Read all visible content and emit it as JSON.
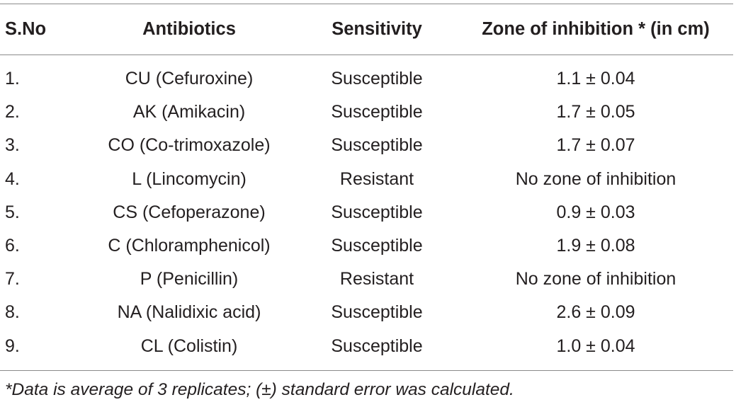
{
  "table": {
    "headers": {
      "sno": "S.No",
      "antibiotics": "Antibiotics",
      "sensitivity": "Sensitivity",
      "zone": "Zone of inhibition * (in cm)"
    },
    "rows": [
      {
        "sno": "1.",
        "antibiotic": "CU (Cefuroxine)",
        "sensitivity": "Susceptible",
        "zone": "1.1 ± 0.04"
      },
      {
        "sno": "2.",
        "antibiotic": "AK (Amikacin)",
        "sensitivity": "Susceptible",
        "zone": "1.7 ± 0.05"
      },
      {
        "sno": "3.",
        "antibiotic": "CO (Co-trimoxazole)",
        "sensitivity": "Susceptible",
        "zone": "1.7 ± 0.07"
      },
      {
        "sno": "4.",
        "antibiotic": "L (Lincomycin)",
        "sensitivity": "Resistant",
        "zone": "No zone of inhibition"
      },
      {
        "sno": "5.",
        "antibiotic": "CS (Cefoperazone)",
        "sensitivity": "Susceptible",
        "zone": "0.9 ± 0.03"
      },
      {
        "sno": "6.",
        "antibiotic": "C (Chloramphenicol)",
        "sensitivity": "Susceptible",
        "zone": "1.9 ± 0.08"
      },
      {
        "sno": "7.",
        "antibiotic": "P (Penicillin)",
        "sensitivity": "Resistant",
        "zone": "No zone of inhibition"
      },
      {
        "sno": "8.",
        "antibiotic": "NA (Nalidixic acid)",
        "sensitivity": "Susceptible",
        "zone": "2.6 ± 0.09"
      },
      {
        "sno": "9.",
        "antibiotic": "CL (Colistin)",
        "sensitivity": "Susceptible",
        "zone": "1.0 ± 0.04"
      }
    ]
  },
  "footnote": "*Data is average of 3 replicates; (±) standard error was calculated."
}
